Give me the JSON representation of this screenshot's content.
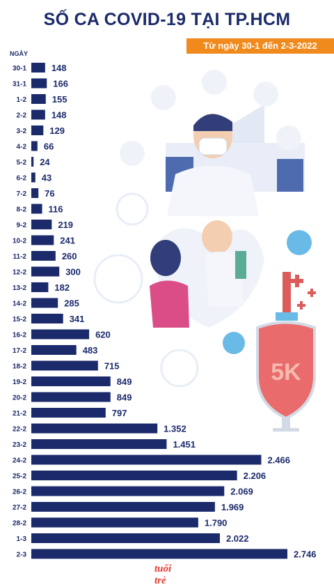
{
  "title": "SỐ CA COVID-19 TẠI TP.HCM",
  "subtitle": "Từ ngày 30-1 đến 2-3-2022",
  "logo": "tuổi trẻ",
  "colors": {
    "bar": "#1b2a6b",
    "accent": "#f08a1d",
    "text": "#1b2a6b"
  },
  "chart_data": {
    "type": "bar",
    "orientation": "horizontal",
    "ylabel": "NGÀY",
    "categories": [
      "30-1",
      "31-1",
      "1-2",
      "2-2",
      "3-2",
      "4-2",
      "5-2",
      "6-2",
      "7-2",
      "8-2",
      "9-2",
      "10-2",
      "11-2",
      "12-2",
      "13-2",
      "14-2",
      "15-2",
      "16-2",
      "17-2",
      "18-2",
      "19-2",
      "20-2",
      "21-2",
      "22-2",
      "23-2",
      "24-2",
      "25-2",
      "26-2",
      "27-2",
      "28-2",
      "1-3",
      "2-3"
    ],
    "values": [
      148,
      166,
      155,
      148,
      129,
      66,
      24,
      43,
      76,
      116,
      219,
      241,
      260,
      300,
      182,
      285,
      341,
      620,
      483,
      715,
      849,
      849,
      797,
      1352,
      1451,
      2466,
      2206,
      2069,
      1969,
      1790,
      2022,
      2746
    ],
    "value_labels": [
      "148",
      "166",
      "155",
      "148",
      "129",
      "66",
      "24",
      "43",
      "76",
      "116",
      "219",
      "241",
      "260",
      "300",
      "182",
      "285",
      "341",
      "620",
      "483",
      "715",
      "849",
      "849",
      "797",
      "1.352",
      "1.451",
      "2.466",
      "2.206",
      "2.069",
      "1.969",
      "1.790",
      "2.022",
      "2.746"
    ]
  }
}
